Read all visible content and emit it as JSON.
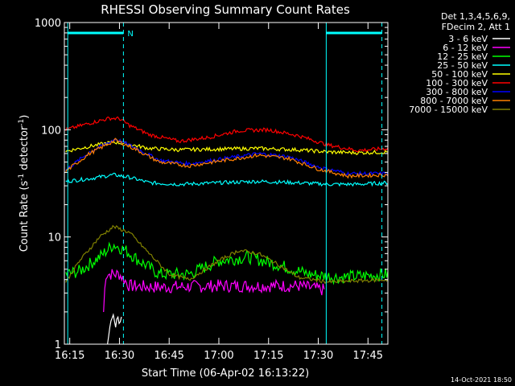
{
  "chart_data": {
    "type": "line",
    "title": "RHESSI Observing Summary Count Rates",
    "xlabel": "Start Time (06-Apr-02 16:13:22)",
    "ylabel_prefix": "Count Rate (s",
    "ylabel_mid": " detector",
    "ylabel_suffix": ")",
    "ylabel_exp": "-1",
    "yscale": "log",
    "ylim": [
      1,
      1000
    ],
    "xlim": [
      16.223,
      17.85
    ],
    "grid": false,
    "legend_position": "top-right",
    "footer_date": "14-Oct-2021 18:50",
    "legend_header": [
      "Det 1,3,4,5,6,9,",
      "FDecim 2, Att 1"
    ],
    "x_ticks": [
      {
        "v": 16.25,
        "label": "16:15"
      },
      {
        "v": 16.5,
        "label": "16:30"
      },
      {
        "v": 16.75,
        "label": "16:45"
      },
      {
        "v": 17.0,
        "label": "17:00"
      },
      {
        "v": 17.25,
        "label": "17:15"
      },
      {
        "v": 17.5,
        "label": "17:30"
      },
      {
        "v": 17.75,
        "label": "17:45"
      }
    ],
    "y_ticks": [
      {
        "v": 1,
        "label": "1"
      },
      {
        "v": 10,
        "label": "10"
      },
      {
        "v": 100,
        "label": "100"
      },
      {
        "v": 1000,
        "label": "1000"
      }
    ],
    "marker_label": "N",
    "vlines_solid": [
      16.24,
      17.54
    ],
    "vlines_dashed": [
      16.52,
      17.82
    ],
    "bars_top": [
      [
        16.24,
        16.52
      ],
      [
        17.54,
        17.82
      ]
    ],
    "series": [
      {
        "name": "3 - 6 keV",
        "color": "#ffffff",
        "points": [
          [
            16.44,
            1
          ],
          [
            16.455,
            1.6
          ],
          [
            16.47,
            1.9
          ],
          [
            16.48,
            1.4
          ],
          [
            16.49,
            1.9
          ],
          [
            16.5,
            1.5
          ],
          [
            16.51,
            1.8
          ]
        ]
      },
      {
        "name": "6 - 12 keV",
        "color": "#ff00ff",
        "points": [
          [
            16.42,
            2.0
          ],
          [
            16.43,
            4.5
          ],
          [
            16.5,
            4.5
          ],
          [
            16.55,
            3.5
          ],
          [
            16.7,
            3.4
          ],
          [
            17.0,
            3.5
          ],
          [
            17.2,
            3.5
          ],
          [
            17.4,
            3.5
          ],
          [
            17.53,
            3.2
          ]
        ]
      },
      {
        "name": "12 - 25 keV",
        "color": "#00ff00",
        "points": [
          [
            16.23,
            4.5
          ],
          [
            16.3,
            4.8
          ],
          [
            16.4,
            6.5
          ],
          [
            16.47,
            8.5
          ],
          [
            16.53,
            7.5
          ],
          [
            16.6,
            6.0
          ],
          [
            16.7,
            4.5
          ],
          [
            16.85,
            4.5
          ],
          [
            17.0,
            6.0
          ],
          [
            17.15,
            6.5
          ],
          [
            17.3,
            5.5
          ],
          [
            17.45,
            4.5
          ],
          [
            17.6,
            4.2
          ],
          [
            17.7,
            4.3
          ],
          [
            17.85,
            4.5
          ]
        ]
      },
      {
        "name": "25 - 50 keV",
        "color": "#00ffff",
        "points": [
          [
            16.23,
            33
          ],
          [
            16.35,
            35
          ],
          [
            16.47,
            38
          ],
          [
            16.55,
            36
          ],
          [
            16.65,
            32
          ],
          [
            16.8,
            31
          ],
          [
            17.0,
            32
          ],
          [
            17.2,
            33
          ],
          [
            17.4,
            32
          ],
          [
            17.55,
            31
          ],
          [
            17.7,
            31
          ],
          [
            17.85,
            32
          ]
        ]
      },
      {
        "name": "50 - 100 keV",
        "color": "#ffff00",
        "points": [
          [
            16.23,
            63
          ],
          [
            16.35,
            70
          ],
          [
            16.47,
            77
          ],
          [
            16.55,
            73
          ],
          [
            16.65,
            67
          ],
          [
            16.8,
            65
          ],
          [
            17.0,
            66
          ],
          [
            17.2,
            67
          ],
          [
            17.4,
            65
          ],
          [
            17.55,
            62
          ],
          [
            17.7,
            61
          ],
          [
            17.85,
            62
          ]
        ]
      },
      {
        "name": "100 - 300 keV",
        "color": "#ff0000",
        "points": [
          [
            16.23,
            100
          ],
          [
            16.35,
            115
          ],
          [
            16.45,
            128
          ],
          [
            16.5,
            127
          ],
          [
            16.55,
            110
          ],
          [
            16.65,
            90
          ],
          [
            16.8,
            78
          ],
          [
            16.95,
            85
          ],
          [
            17.1,
            98
          ],
          [
            17.25,
            100
          ],
          [
            17.4,
            88
          ],
          [
            17.55,
            72
          ],
          [
            17.7,
            64
          ],
          [
            17.85,
            67
          ]
        ]
      },
      {
        "name": "300 - 800 keV",
        "color": "#0000ff",
        "points": [
          [
            16.23,
            42
          ],
          [
            16.35,
            62
          ],
          [
            16.48,
            82
          ],
          [
            16.58,
            68
          ],
          [
            16.7,
            52
          ],
          [
            16.85,
            48
          ],
          [
            17.0,
            53
          ],
          [
            17.2,
            60
          ],
          [
            17.35,
            56
          ],
          [
            17.5,
            45
          ],
          [
            17.65,
            39
          ],
          [
            17.85,
            39
          ]
        ]
      },
      {
        "name": "800 - 7000 keV",
        "color": "#ff8000",
        "points": [
          [
            16.23,
            41
          ],
          [
            16.35,
            60
          ],
          [
            16.48,
            80
          ],
          [
            16.58,
            66
          ],
          [
            16.7,
            50
          ],
          [
            16.85,
            46
          ],
          [
            17.0,
            51
          ],
          [
            17.2,
            58
          ],
          [
            17.35,
            54
          ],
          [
            17.5,
            43
          ],
          [
            17.65,
            37
          ],
          [
            17.85,
            38
          ]
        ]
      },
      {
        "name": "7000 - 15000 keV",
        "color": "#808000",
        "points": [
          [
            16.23,
            3.8
          ],
          [
            16.3,
            6.0
          ],
          [
            16.4,
            10
          ],
          [
            16.47,
            12.5
          ],
          [
            16.55,
            11
          ],
          [
            16.65,
            7.0
          ],
          [
            16.75,
            4.5
          ],
          [
            16.85,
            4.0
          ],
          [
            17.0,
            6.0
          ],
          [
            17.1,
            7.5
          ],
          [
            17.2,
            7.0
          ],
          [
            17.3,
            5.5
          ],
          [
            17.4,
            4.2
          ],
          [
            17.55,
            3.8
          ],
          [
            17.7,
            3.9
          ],
          [
            17.85,
            4.0
          ]
        ]
      }
    ]
  }
}
